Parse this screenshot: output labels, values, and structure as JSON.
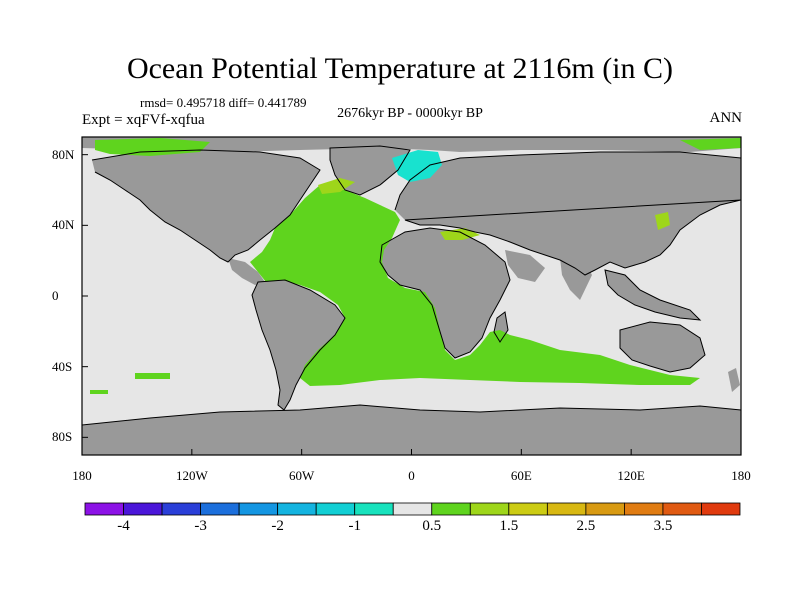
{
  "header": {
    "title": "Ocean Potential Temperature at 2116m (in C)",
    "stats": "rmsd= 0.495718 diff= 0.441789",
    "period": "2676kyr BP - 0000kyr BP",
    "experiment": "Expt = xqFVf-xqfua",
    "season": "ANN"
  },
  "axes": {
    "lat_labels": [
      "80N",
      "40N",
      "0",
      "40S",
      "80S"
    ],
    "lat_values": [
      80,
      40,
      0,
      -40,
      -80
    ],
    "lon_labels": [
      "180",
      "120W",
      "60W",
      "0",
      "60E",
      "120E",
      "180"
    ],
    "lon_values": [
      -180,
      -120,
      -60,
      0,
      60,
      120,
      180
    ],
    "lon_range": [
      -180,
      180
    ],
    "lat_range": [
      -90,
      90
    ]
  },
  "colorbar": {
    "colors": [
      "#8c12e6",
      "#4b16d9",
      "#2a3fd8",
      "#1c6fdc",
      "#1496e2",
      "#14b4e0",
      "#12cfd4",
      "#18e2bd",
      "#e6e6e6",
      "#5fd41e",
      "#9ed61a",
      "#cccc14",
      "#d8b812",
      "#d89a12",
      "#e07c12",
      "#e05a12",
      "#e03a0e"
    ],
    "labels": [
      "-4",
      "-3",
      "-2",
      "-1",
      "0.5",
      "1.5",
      "2.5",
      "3.5"
    ],
    "label_slots": [
      1,
      3,
      5,
      7,
      9,
      11,
      13,
      15
    ]
  },
  "map_colors": {
    "land": "#999999",
    "no_change": "#e6e6e6",
    "warm": "#5fd41e",
    "warmer": "#9ed61a",
    "cool": "#18e2cf"
  }
}
